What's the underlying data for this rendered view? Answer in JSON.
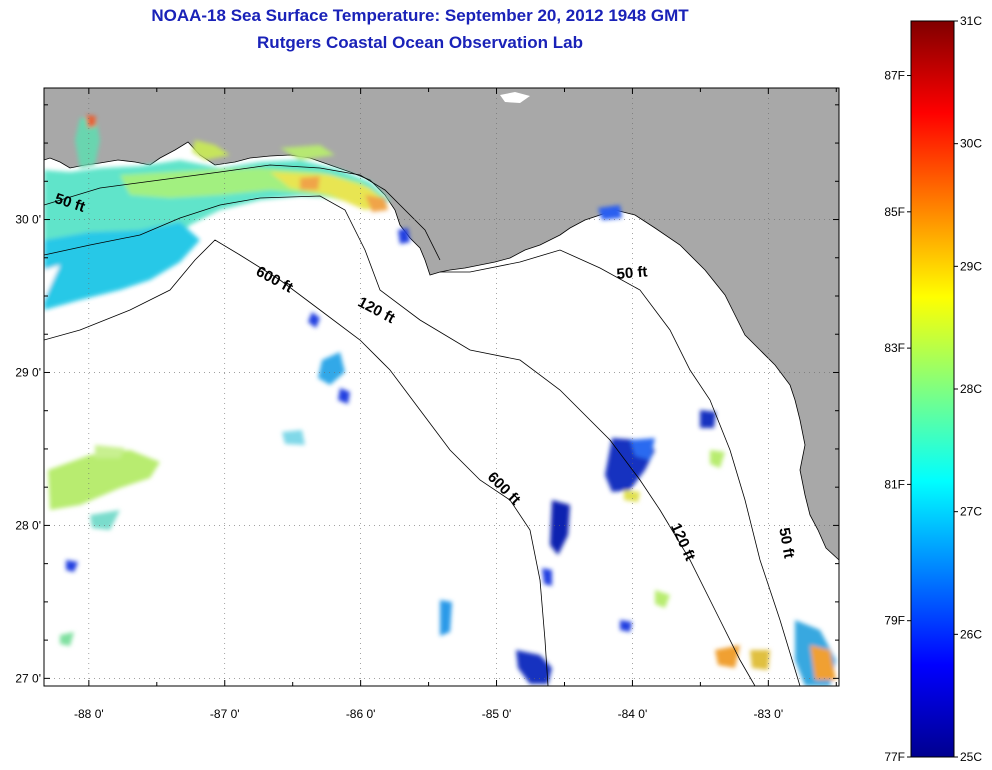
{
  "title": {
    "line1": "NOAA-18 Sea Surface Temperature:  September 20, 2012 1948 GMT",
    "line2": "Rutgers Coastal Ocean Observation Lab"
  },
  "map": {
    "lat_ticks": [
      {
        "value": 30,
        "label": "30 0'"
      },
      {
        "value": 29,
        "label": "29 0'"
      },
      {
        "value": 28,
        "label": "28 0'"
      },
      {
        "value": 27,
        "label": "27 0'"
      }
    ],
    "lon_ticks": [
      {
        "value": -88,
        "label": "-88 0'"
      },
      {
        "value": -87,
        "label": "-87 0'"
      },
      {
        "value": -86,
        "label": "-86 0'"
      },
      {
        "value": -85,
        "label": "-85 0'"
      },
      {
        "value": -84,
        "label": "-84 0'"
      },
      {
        "value": -83,
        "label": "-83 0'"
      }
    ],
    "lon_range": [
      -88.33,
      -82.48
    ],
    "lat_range": [
      26.95,
      30.86
    ],
    "contour_labels": [
      {
        "text": "50 ft",
        "lon": -88.15,
        "lat": 30.08,
        "rot": 18
      },
      {
        "text": "600 ft",
        "lon": -86.65,
        "lat": 29.58,
        "rot": 28
      },
      {
        "text": "120 ft",
        "lon": -85.9,
        "lat": 29.38,
        "rot": 28
      },
      {
        "text": "50 ft",
        "lon": -84.0,
        "lat": 29.62,
        "rot": -5
      },
      {
        "text": "600 ft",
        "lon": -84.97,
        "lat": 28.22,
        "rot": 45
      },
      {
        "text": "120 ft",
        "lon": -83.66,
        "lat": 27.88,
        "rot": 66
      },
      {
        "text": "50 ft",
        "lon": -82.9,
        "lat": 27.88,
        "rot": 80
      }
    ],
    "land_color": "#a8a8a8",
    "grid": "dotted"
  },
  "colorbar": {
    "celsius": [
      "31C",
      "30C",
      "29C",
      "28C",
      "27C",
      "26C",
      "25C"
    ],
    "fahrenheit": [
      "87F",
      "85F",
      "83F",
      "81F",
      "79F",
      "77F"
    ],
    "range_c": [
      25,
      31
    ]
  }
}
